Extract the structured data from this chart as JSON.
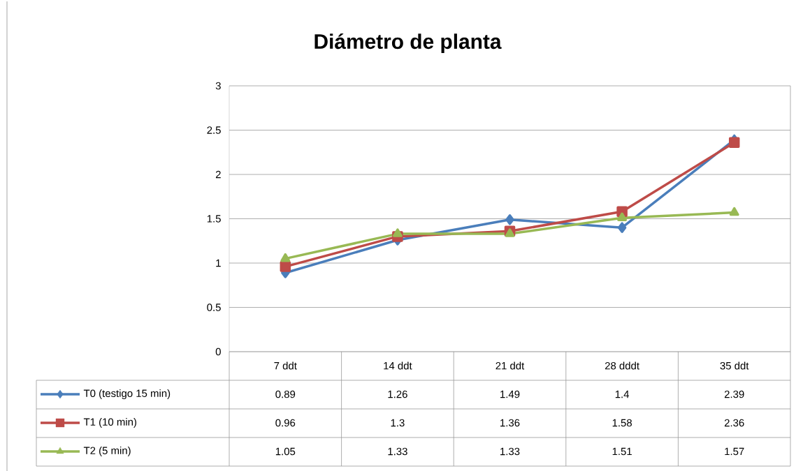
{
  "chart_data": {
    "type": "line",
    "title": "Diámetro de planta",
    "categories": [
      "7 ddt",
      "14 ddt",
      "21 ddt",
      "28 dddt",
      "35 ddt"
    ],
    "series": [
      {
        "name": "T0 (testigo 15 min)",
        "color": "#4a7ebb",
        "marker": "diamond",
        "values": [
          0.89,
          1.26,
          1.49,
          1.4,
          2.39
        ]
      },
      {
        "name": "T1 (10 min)",
        "color": "#be4b48",
        "marker": "square",
        "values": [
          0.96,
          1.3,
          1.36,
          1.58,
          2.36
        ]
      },
      {
        "name": "T2 (5 min)",
        "color": "#98b954",
        "marker": "triangle",
        "values": [
          1.05,
          1.33,
          1.33,
          1.51,
          1.57
        ]
      }
    ],
    "ylim": [
      0,
      3
    ],
    "yticks": [
      0,
      0.5,
      1,
      1.5,
      2,
      2.5,
      3
    ],
    "grid": "y",
    "legend": "bottom",
    "data_labels": true,
    "line_style": "solid"
  }
}
